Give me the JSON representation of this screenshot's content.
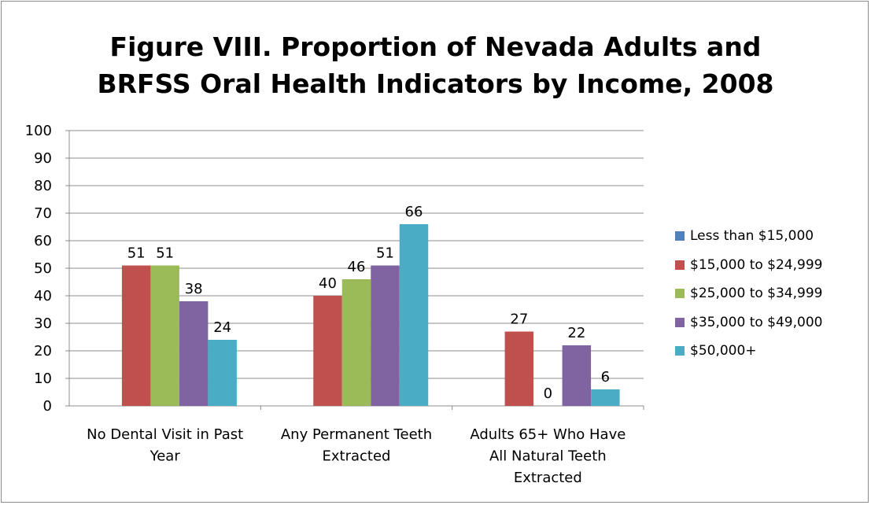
{
  "chart_data": {
    "type": "bar",
    "title_lines": [
      "Figure VIII. Proportion of Nevada Adults and",
      "BRFSS Oral Health Indicators by Income, 2008"
    ],
    "categories": [
      [
        "No Dental Visit in Past",
        "Year"
      ],
      [
        "Any Permanent Teeth",
        "Extracted"
      ],
      [
        "Adults 65+ Who Have",
        "All Natural Teeth",
        "Extracted"
      ]
    ],
    "series": [
      {
        "name": "Less than $15,000",
        "color": "#4f81bd",
        "values": [
          null,
          null,
          null
        ]
      },
      {
        "name": "$15,000 to $24,999",
        "color": "#c0504d",
        "values": [
          51,
          40,
          27
        ]
      },
      {
        "name": "$25,000 to $34,999",
        "color": "#9bbb59",
        "values": [
          51,
          46,
          0
        ]
      },
      {
        "name": "$35,000 to $49,000",
        "color": "#8064a2",
        "values": [
          38,
          51,
          22
        ]
      },
      {
        "name": "$50,000+",
        "color": "#4bacc6",
        "values": [
          24,
          66,
          6
        ]
      }
    ],
    "ylim": [
      0,
      100
    ],
    "yticks": [
      0,
      10,
      20,
      30,
      40,
      50,
      60,
      70,
      80,
      90,
      100
    ],
    "grid": true,
    "legend_position": "right"
  }
}
